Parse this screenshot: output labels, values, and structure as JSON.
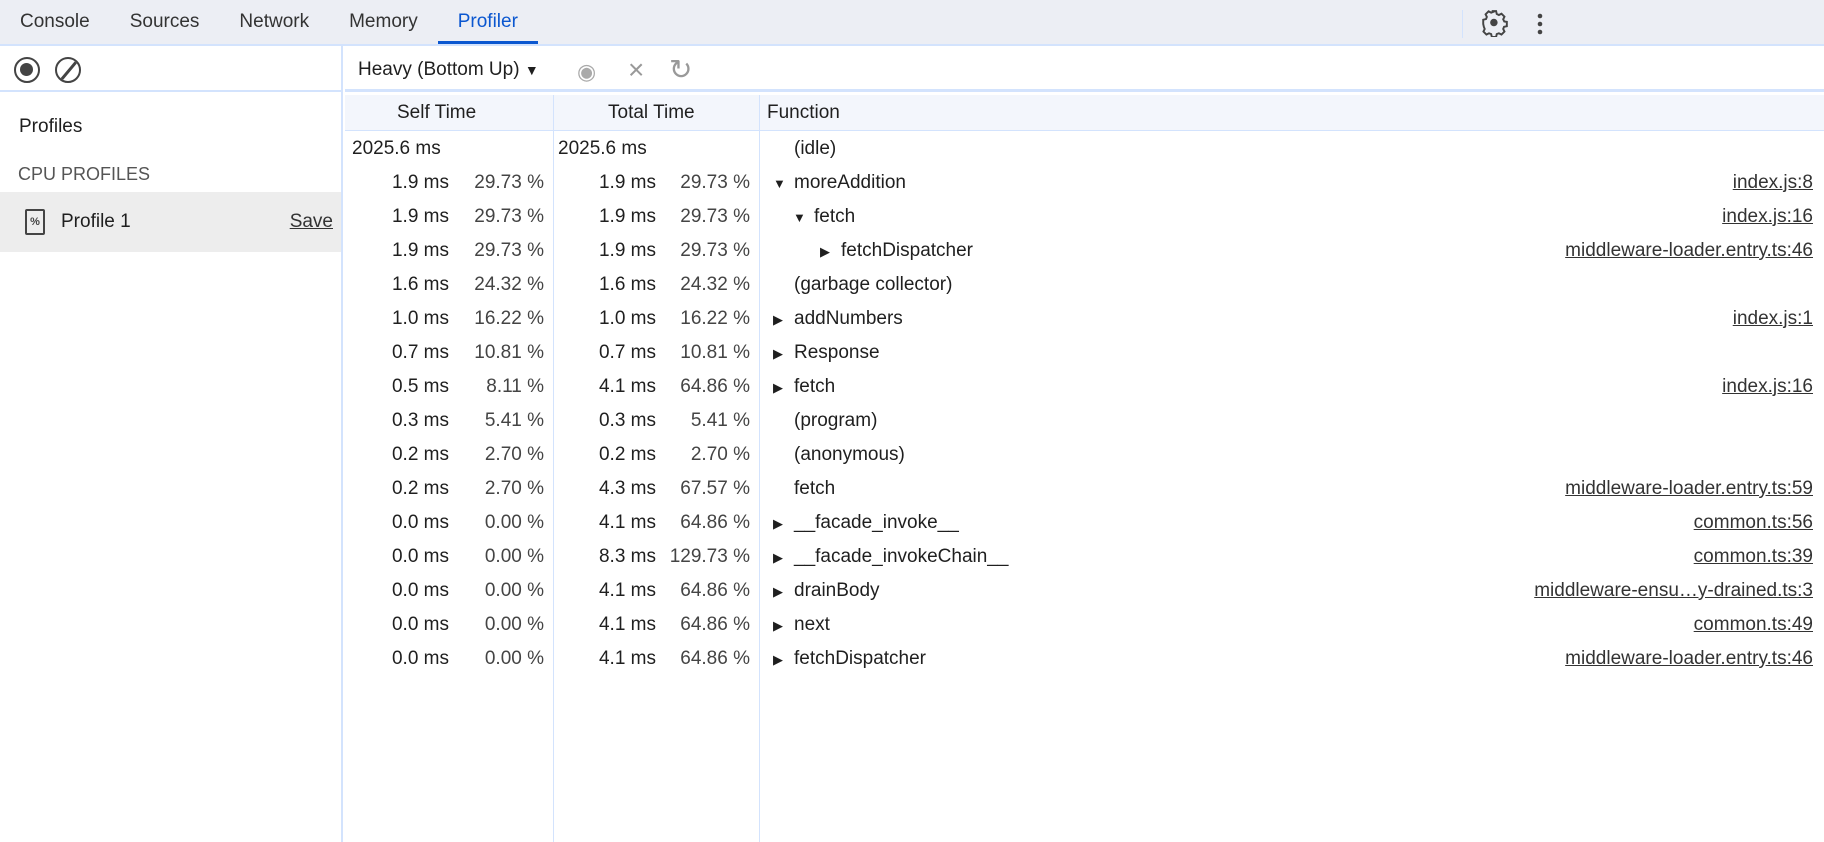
{
  "tabs": [
    "Console",
    "Sources",
    "Network",
    "Memory",
    "Profiler"
  ],
  "active_tab": "Profiler",
  "sidebar": {
    "title": "Profiles",
    "section": "CPU PROFILES",
    "profile": {
      "name": "Profile 1",
      "save": "Save"
    }
  },
  "toolbar": {
    "view": "Heavy (Bottom Up)"
  },
  "columns": {
    "self": "Self Time",
    "total": "Total Time",
    "func": "Function"
  },
  "rows": [
    {
      "self": "2025.6 ms",
      "selfp": "",
      "total": "2025.6 ms",
      "totalp": "",
      "depth": 0,
      "arrow": "",
      "name": "(idle)",
      "src": ""
    },
    {
      "self": "1.9 ms",
      "selfp": "29.73 %",
      "total": "1.9 ms",
      "totalp": "29.73 %",
      "depth": 0,
      "arrow": "down",
      "name": "moreAddition",
      "src": "index.js:8"
    },
    {
      "self": "1.9 ms",
      "selfp": "29.73 %",
      "total": "1.9 ms",
      "totalp": "29.73 %",
      "depth": 1,
      "arrow": "down",
      "name": "fetch",
      "src": "index.js:16"
    },
    {
      "self": "1.9 ms",
      "selfp": "29.73 %",
      "total": "1.9 ms",
      "totalp": "29.73 %",
      "depth": 2,
      "arrow": "right",
      "name": "fetchDispatcher",
      "src": "middleware-loader.entry.ts:46"
    },
    {
      "self": "1.6 ms",
      "selfp": "24.32 %",
      "total": "1.6 ms",
      "totalp": "24.32 %",
      "depth": 0,
      "arrow": "",
      "name": "(garbage collector)",
      "src": ""
    },
    {
      "self": "1.0 ms",
      "selfp": "16.22 %",
      "total": "1.0 ms",
      "totalp": "16.22 %",
      "depth": 0,
      "arrow": "right",
      "name": "addNumbers",
      "src": "index.js:1"
    },
    {
      "self": "0.7 ms",
      "selfp": "10.81 %",
      "total": "0.7 ms",
      "totalp": "10.81 %",
      "depth": 0,
      "arrow": "right",
      "name": "Response",
      "src": ""
    },
    {
      "self": "0.5 ms",
      "selfp": "8.11 %",
      "total": "4.1 ms",
      "totalp": "64.86 %",
      "depth": 0,
      "arrow": "right",
      "name": "fetch",
      "src": "index.js:16"
    },
    {
      "self": "0.3 ms",
      "selfp": "5.41 %",
      "total": "0.3 ms",
      "totalp": "5.41 %",
      "depth": 0,
      "arrow": "",
      "name": "(program)",
      "src": ""
    },
    {
      "self": "0.2 ms",
      "selfp": "2.70 %",
      "total": "0.2 ms",
      "totalp": "2.70 %",
      "depth": 0,
      "arrow": "",
      "name": "(anonymous)",
      "src": ""
    },
    {
      "self": "0.2 ms",
      "selfp": "2.70 %",
      "total": "4.3 ms",
      "totalp": "67.57 %",
      "depth": 0,
      "arrow": "",
      "name": "fetch",
      "src": "middleware-loader.entry.ts:59"
    },
    {
      "self": "0.0 ms",
      "selfp": "0.00 %",
      "total": "4.1 ms",
      "totalp": "64.86 %",
      "depth": 0,
      "arrow": "right",
      "name": "__facade_invoke__",
      "src": "common.ts:56"
    },
    {
      "self": "0.0 ms",
      "selfp": "0.00 %",
      "total": "8.3 ms",
      "totalp": "129.73 %",
      "depth": 0,
      "arrow": "right",
      "name": "__facade_invokeChain__",
      "src": "common.ts:39"
    },
    {
      "self": "0.0 ms",
      "selfp": "0.00 %",
      "total": "4.1 ms",
      "totalp": "64.86 %",
      "depth": 0,
      "arrow": "right",
      "name": "drainBody",
      "src": "middleware-ensu…y-drained.ts:3"
    },
    {
      "self": "0.0 ms",
      "selfp": "0.00 %",
      "total": "4.1 ms",
      "totalp": "64.86 %",
      "depth": 0,
      "arrow": "right",
      "name": "next",
      "src": "common.ts:49"
    },
    {
      "self": "0.0 ms",
      "selfp": "0.00 %",
      "total": "4.1 ms",
      "totalp": "64.86 %",
      "depth": 0,
      "arrow": "right",
      "name": "fetchDispatcher",
      "src": "middleware-loader.entry.ts:46"
    }
  ]
}
